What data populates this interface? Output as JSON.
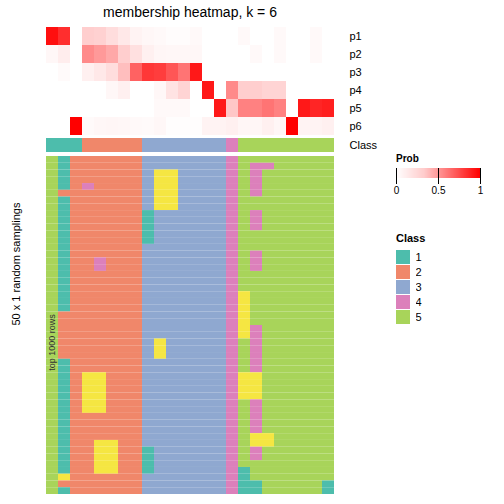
{
  "chart_data": {
    "type": "heatmap",
    "title": "membership heatmap, k = 6",
    "ylabel": "50 x 1 random samplings",
    "annotations": [
      "top 1000 rows"
    ],
    "prob_labels": [
      "p1",
      "p2",
      "p3",
      "p4",
      "p5",
      "p6"
    ],
    "prob_values": [
      [
        0.95,
        0.85,
        0.0,
        0.32,
        0.3,
        0.22,
        0.15,
        0.08,
        0.05,
        0.04,
        0.02,
        0.02,
        0.04,
        0.0,
        0.0,
        0.0,
        0.04,
        0.0,
        0.0,
        0.04,
        0.0,
        0.0,
        0.04,
        0.0
      ],
      [
        0.05,
        0.12,
        0.0,
        0.55,
        0.5,
        0.45,
        0.32,
        0.2,
        0.1,
        0.06,
        0.05,
        0.05,
        0.05,
        0.0,
        0.0,
        0.0,
        0.0,
        0.04,
        0.0,
        0.04,
        0.0,
        0.0,
        0.04,
        0.0
      ],
      [
        0.0,
        0.03,
        0.0,
        0.1,
        0.15,
        0.22,
        0.38,
        0.68,
        0.82,
        0.8,
        0.72,
        0.62,
        0.92,
        0.0,
        0.0,
        0.0,
        0.0,
        0.0,
        0.0,
        0.0,
        0.0,
        0.0,
        0.0,
        0.0
      ],
      [
        0.0,
        0.0,
        0.0,
        0.0,
        0.0,
        0.05,
        0.1,
        0.0,
        0.0,
        0.05,
        0.18,
        0.28,
        0.0,
        0.92,
        0.0,
        0.55,
        0.32,
        0.32,
        0.28,
        0.28,
        0.0,
        0.0,
        0.0,
        0.0
      ],
      [
        0.0,
        0.0,
        0.0,
        0.0,
        0.0,
        0.0,
        0.0,
        0.0,
        0.0,
        0.04,
        0.04,
        0.04,
        0.0,
        0.0,
        0.92,
        0.35,
        0.58,
        0.58,
        0.62,
        0.58,
        0.0,
        0.92,
        0.88,
        0.9
      ],
      [
        0.0,
        0.0,
        1.0,
        0.03,
        0.05,
        0.06,
        0.05,
        0.04,
        0.03,
        0.05,
        0.01,
        0.01,
        0.01,
        0.08,
        0.08,
        0.1,
        0.06,
        0.06,
        0.1,
        0.06,
        1.0,
        0.08,
        0.08,
        0.1
      ]
    ],
    "prob_colorbar": {
      "label": "Prob",
      "range": [
        0,
        1
      ],
      "ticks": [
        0,
        0.5,
        1
      ],
      "colors": [
        "#ffffff",
        "#ffcccc",
        "#ff6666",
        "#ff0000"
      ]
    },
    "class_label": "Class",
    "legend_title": "Class",
    "col_classes": [
      1,
      1,
      1,
      2,
      2,
      2,
      2,
      2,
      3,
      3,
      3,
      3,
      3,
      3,
      3,
      4,
      5,
      5,
      5,
      5,
      5,
      5,
      5,
      5
    ],
    "classes": [
      {
        "value": 1,
        "name": "1",
        "color": "#4DBDAC"
      },
      {
        "value": 2,
        "name": "2",
        "color": "#F0876A"
      },
      {
        "value": 3,
        "name": "3",
        "color": "#8FA8D0"
      },
      {
        "value": 4,
        "name": "4",
        "color": "#DC80BB"
      },
      {
        "value": 5,
        "name": "5",
        "color": "#A8D45A"
      },
      {
        "value": 6,
        "color": "#F5E642"
      }
    ],
    "cells": [
      [
        5,
        1,
        2,
        2,
        2,
        2,
        2,
        2,
        3,
        3,
        3,
        3,
        3,
        3,
        3,
        4,
        5,
        5,
        5,
        5,
        5,
        5,
        5,
        5
      ],
      [
        5,
        1,
        2,
        2,
        2,
        2,
        2,
        2,
        3,
        3,
        3,
        3,
        3,
        3,
        3,
        4,
        5,
        4,
        4,
        5,
        5,
        5,
        5,
        5
      ],
      [
        5,
        1,
        2,
        2,
        2,
        2,
        2,
        2,
        3,
        6,
        6,
        3,
        3,
        3,
        3,
        4,
        5,
        4,
        5,
        5,
        5,
        5,
        5,
        5
      ],
      [
        5,
        1,
        2,
        2,
        2,
        2,
        2,
        2,
        3,
        6,
        6,
        3,
        3,
        3,
        3,
        4,
        5,
        4,
        5,
        5,
        5,
        5,
        5,
        5
      ],
      [
        5,
        1,
        2,
        4,
        2,
        2,
        2,
        2,
        3,
        6,
        6,
        3,
        3,
        3,
        3,
        4,
        5,
        4,
        5,
        5,
        5,
        5,
        5,
        5
      ],
      [
        5,
        2,
        2,
        2,
        2,
        2,
        2,
        2,
        3,
        6,
        6,
        3,
        3,
        3,
        3,
        4,
        5,
        4,
        5,
        5,
        5,
        5,
        5,
        5
      ],
      [
        5,
        1,
        2,
        2,
        2,
        2,
        2,
        2,
        3,
        6,
        6,
        3,
        3,
        3,
        3,
        4,
        5,
        5,
        5,
        5,
        5,
        5,
        5,
        5
      ],
      [
        5,
        1,
        2,
        2,
        2,
        2,
        2,
        2,
        3,
        6,
        6,
        3,
        3,
        3,
        3,
        4,
        5,
        5,
        5,
        5,
        5,
        5,
        5,
        5
      ],
      [
        5,
        1,
        2,
        2,
        2,
        2,
        2,
        2,
        1,
        3,
        3,
        3,
        3,
        3,
        3,
        4,
        5,
        4,
        5,
        5,
        5,
        5,
        5,
        5
      ],
      [
        5,
        1,
        2,
        2,
        2,
        2,
        2,
        2,
        1,
        3,
        3,
        3,
        3,
        3,
        3,
        4,
        5,
        4,
        5,
        5,
        5,
        5,
        5,
        5
      ],
      [
        5,
        1,
        2,
        2,
        2,
        2,
        2,
        2,
        1,
        3,
        3,
        3,
        3,
        3,
        3,
        4,
        5,
        4,
        5,
        5,
        5,
        5,
        5,
        5
      ],
      [
        5,
        1,
        2,
        2,
        2,
        2,
        2,
        2,
        1,
        3,
        3,
        3,
        3,
        3,
        3,
        4,
        5,
        5,
        5,
        5,
        5,
        5,
        5,
        5
      ],
      [
        5,
        1,
        2,
        2,
        2,
        2,
        2,
        2,
        1,
        3,
        3,
        3,
        3,
        3,
        3,
        4,
        5,
        5,
        5,
        5,
        5,
        5,
        5,
        5
      ],
      [
        5,
        1,
        2,
        2,
        2,
        2,
        2,
        2,
        3,
        3,
        3,
        3,
        3,
        3,
        3,
        4,
        5,
        5,
        5,
        5,
        5,
        5,
        5,
        5
      ],
      [
        5,
        1,
        2,
        2,
        2,
        2,
        2,
        2,
        3,
        3,
        3,
        3,
        3,
        3,
        3,
        4,
        5,
        4,
        5,
        5,
        5,
        5,
        5,
        5
      ],
      [
        5,
        1,
        2,
        2,
        4,
        2,
        2,
        2,
        3,
        3,
        3,
        3,
        3,
        3,
        3,
        4,
        5,
        4,
        5,
        5,
        5,
        5,
        5,
        5
      ],
      [
        5,
        1,
        2,
        2,
        4,
        2,
        2,
        2,
        3,
        3,
        3,
        3,
        3,
        3,
        3,
        4,
        5,
        4,
        5,
        5,
        5,
        5,
        5,
        5
      ],
      [
        5,
        1,
        2,
        2,
        2,
        2,
        2,
        2,
        3,
        3,
        3,
        3,
        3,
        3,
        3,
        4,
        5,
        5,
        5,
        5,
        5,
        5,
        5,
        5
      ],
      [
        5,
        1,
        2,
        2,
        2,
        2,
        2,
        2,
        3,
        3,
        3,
        3,
        3,
        3,
        3,
        4,
        5,
        5,
        5,
        5,
        5,
        5,
        5,
        5
      ],
      [
        5,
        1,
        2,
        2,
        2,
        2,
        2,
        2,
        3,
        3,
        3,
        3,
        3,
        3,
        3,
        4,
        5,
        5,
        5,
        5,
        5,
        5,
        5,
        5
      ],
      [
        5,
        1,
        2,
        2,
        2,
        2,
        2,
        2,
        3,
        3,
        3,
        3,
        3,
        3,
        3,
        4,
        6,
        5,
        5,
        5,
        5,
        5,
        5,
        5
      ],
      [
        5,
        1,
        2,
        2,
        2,
        2,
        2,
        2,
        3,
        3,
        3,
        3,
        3,
        3,
        3,
        4,
        6,
        5,
        5,
        5,
        5,
        5,
        5,
        5
      ],
      [
        5,
        1,
        2,
        2,
        2,
        2,
        2,
        2,
        3,
        3,
        3,
        3,
        3,
        3,
        3,
        4,
        6,
        5,
        5,
        5,
        5,
        5,
        5,
        5
      ],
      [
        5,
        2,
        2,
        2,
        2,
        2,
        2,
        2,
        3,
        3,
        3,
        3,
        3,
        3,
        3,
        4,
        6,
        5,
        5,
        5,
        5,
        5,
        5,
        5
      ],
      [
        5,
        2,
        2,
        2,
        2,
        2,
        2,
        2,
        3,
        3,
        3,
        3,
        3,
        3,
        3,
        4,
        6,
        5,
        5,
        5,
        5,
        5,
        5,
        5
      ],
      [
        5,
        2,
        2,
        2,
        2,
        2,
        2,
        2,
        3,
        3,
        3,
        3,
        3,
        3,
        3,
        4,
        6,
        4,
        5,
        5,
        5,
        5,
        5,
        5
      ],
      [
        5,
        2,
        2,
        2,
        2,
        2,
        2,
        2,
        3,
        3,
        3,
        3,
        3,
        3,
        3,
        4,
        6,
        4,
        5,
        5,
        5,
        5,
        5,
        5
      ],
      [
        5,
        2,
        2,
        2,
        2,
        2,
        2,
        2,
        3,
        6,
        3,
        3,
        3,
        3,
        3,
        4,
        5,
        4,
        5,
        5,
        5,
        5,
        5,
        5
      ],
      [
        5,
        2,
        2,
        2,
        2,
        2,
        2,
        2,
        3,
        6,
        3,
        3,
        3,
        3,
        3,
        4,
        5,
        4,
        5,
        5,
        5,
        5,
        5,
        5
      ],
      [
        5,
        2,
        2,
        2,
        2,
        2,
        2,
        2,
        3,
        6,
        3,
        3,
        3,
        3,
        3,
        4,
        5,
        4,
        5,
        5,
        5,
        5,
        5,
        5
      ],
      [
        5,
        1,
        2,
        2,
        2,
        2,
        2,
        2,
        3,
        3,
        3,
        3,
        3,
        3,
        3,
        4,
        5,
        4,
        5,
        5,
        5,
        5,
        5,
        5
      ],
      [
        5,
        1,
        2,
        2,
        2,
        2,
        2,
        2,
        3,
        3,
        3,
        3,
        3,
        3,
        3,
        4,
        5,
        4,
        5,
        5,
        5,
        5,
        5,
        5
      ],
      [
        5,
        1,
        2,
        6,
        6,
        2,
        2,
        2,
        3,
        3,
        3,
        3,
        3,
        3,
        3,
        4,
        6,
        6,
        5,
        5,
        5,
        5,
        5,
        5
      ],
      [
        5,
        1,
        2,
        6,
        6,
        2,
        2,
        2,
        3,
        3,
        3,
        3,
        3,
        3,
        3,
        4,
        6,
        6,
        5,
        5,
        5,
        5,
        5,
        5
      ],
      [
        5,
        1,
        2,
        6,
        6,
        2,
        2,
        2,
        3,
        3,
        3,
        3,
        3,
        3,
        3,
        4,
        6,
        6,
        5,
        5,
        5,
        5,
        5,
        5
      ],
      [
        5,
        1,
        2,
        6,
        6,
        2,
        2,
        2,
        3,
        3,
        3,
        3,
        3,
        3,
        3,
        4,
        6,
        6,
        5,
        5,
        5,
        5,
        5,
        5
      ],
      [
        5,
        1,
        2,
        6,
        6,
        2,
        2,
        2,
        3,
        3,
        3,
        3,
        3,
        3,
        3,
        4,
        5,
        4,
        5,
        5,
        5,
        5,
        5,
        5
      ],
      [
        5,
        1,
        2,
        6,
        6,
        2,
        2,
        2,
        3,
        3,
        3,
        3,
        3,
        3,
        3,
        4,
        5,
        4,
        5,
        5,
        5,
        5,
        5,
        5
      ],
      [
        5,
        1,
        2,
        2,
        2,
        2,
        2,
        2,
        3,
        3,
        3,
        3,
        3,
        3,
        3,
        4,
        5,
        4,
        5,
        5,
        5,
        5,
        5,
        5
      ],
      [
        5,
        1,
        2,
        2,
        2,
        2,
        2,
        2,
        3,
        3,
        3,
        3,
        3,
        3,
        3,
        4,
        5,
        4,
        5,
        5,
        5,
        5,
        5,
        5
      ],
      [
        5,
        1,
        2,
        2,
        2,
        2,
        2,
        2,
        3,
        3,
        3,
        3,
        3,
        3,
        3,
        4,
        5,
        4,
        5,
        5,
        5,
        5,
        5,
        5
      ],
      [
        5,
        1,
        2,
        2,
        2,
        2,
        2,
        2,
        3,
        3,
        3,
        3,
        3,
        3,
        3,
        4,
        5,
        6,
        6,
        5,
        5,
        5,
        5,
        5
      ],
      [
        5,
        1,
        2,
        2,
        6,
        6,
        2,
        2,
        3,
        3,
        3,
        3,
        3,
        3,
        3,
        4,
        5,
        6,
        6,
        5,
        5,
        5,
        5,
        5
      ],
      [
        5,
        1,
        2,
        2,
        6,
        6,
        2,
        2,
        1,
        3,
        3,
        3,
        3,
        3,
        3,
        4,
        5,
        4,
        5,
        5,
        5,
        5,
        5,
        5
      ],
      [
        5,
        1,
        2,
        2,
        6,
        6,
        2,
        2,
        1,
        3,
        3,
        3,
        3,
        3,
        3,
        4,
        5,
        4,
        5,
        5,
        5,
        5,
        5,
        5
      ],
      [
        5,
        1,
        2,
        2,
        6,
        6,
        2,
        2,
        1,
        3,
        3,
        3,
        3,
        3,
        3,
        4,
        5,
        5,
        5,
        5,
        5,
        5,
        5,
        5
      ],
      [
        5,
        1,
        2,
        2,
        6,
        6,
        2,
        2,
        1,
        3,
        3,
        3,
        3,
        3,
        3,
        4,
        1,
        5,
        5,
        5,
        5,
        5,
        5,
        5
      ],
      [
        5,
        6,
        2,
        2,
        2,
        2,
        2,
        2,
        3,
        3,
        3,
        3,
        3,
        3,
        3,
        4,
        1,
        5,
        5,
        5,
        5,
        5,
        5,
        5
      ],
      [
        5,
        2,
        2,
        2,
        2,
        2,
        2,
        2,
        3,
        3,
        3,
        3,
        3,
        3,
        3,
        4,
        1,
        1,
        5,
        5,
        5,
        5,
        5,
        1
      ],
      [
        5,
        1,
        2,
        2,
        2,
        2,
        2,
        2,
        3,
        3,
        3,
        3,
        3,
        3,
        3,
        4,
        1,
        1,
        5,
        5,
        5,
        5,
        5,
        1
      ]
    ]
  }
}
